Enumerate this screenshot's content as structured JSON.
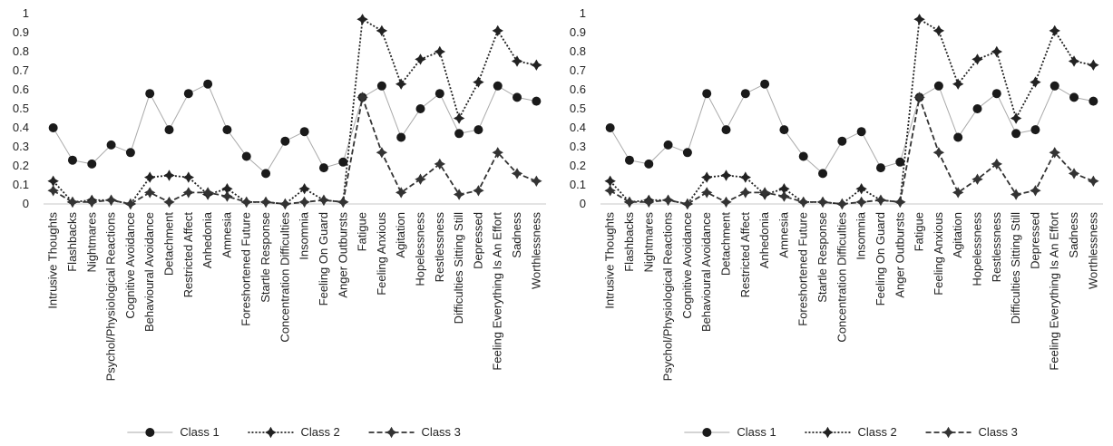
{
  "chart_data": [
    {
      "type": "line",
      "ylim": [
        0,
        1
      ],
      "yticks": [
        "0",
        "0.1",
        "0.2",
        "0.3",
        "0.4",
        "0.5",
        "0.6",
        "0.7",
        "0.8",
        "0.9",
        "1"
      ],
      "grid": false,
      "legend_position": "bottom",
      "categories": [
        "Intrusive Thoughts",
        "Flashbacks",
        "Nightmares",
        "Psychol/Physiological Reactions",
        "Cognitive Avoidance",
        "Behavioural Avoidance",
        "Detachment",
        "Restricted Affect",
        "Anhedonia",
        "Amnesia",
        "Foreshortened Future",
        "Startle Response",
        "Concentration Difficulties",
        "Insomnia",
        "Feeling On Guard",
        "Anger Outbursts",
        "Fatigue",
        "Feeling Anxious",
        "Agitation",
        "Hopelessness",
        "Restlessness",
        "Difficulties Sitting Still",
        "Depressed",
        "Feeling Everything Is An Effort",
        "Sadness",
        "Worthlessness"
      ],
      "series": [
        {
          "name": "Class 1",
          "color": "#aaaaaa",
          "style": "solid",
          "marker": "circle",
          "values": [
            0.4,
            0.23,
            0.21,
            0.31,
            0.27,
            0.58,
            0.39,
            0.58,
            0.63,
            0.39,
            0.25,
            0.16,
            0.33,
            0.38,
            0.19,
            0.22,
            0.56,
            0.62,
            0.35,
            0.5,
            0.58,
            0.37,
            0.39,
            0.62,
            0.56,
            0.54
          ]
        },
        {
          "name": "Class 2",
          "color": "#222222",
          "style": "dotted",
          "marker": "star",
          "values": [
            0.12,
            0.01,
            0.02,
            0.02,
            0.0,
            0.14,
            0.15,
            0.14,
            0.05,
            0.08,
            0.01,
            0.01,
            0.0,
            0.08,
            0.02,
            0.01,
            0.97,
            0.91,
            0.63,
            0.76,
            0.8,
            0.45,
            0.64,
            0.91,
            0.75,
            0.73
          ]
        },
        {
          "name": "Class 3",
          "color": "#333333",
          "style": "dashed",
          "marker": "star",
          "values": [
            0.07,
            0.01,
            0.01,
            0.02,
            0.0,
            0.06,
            0.01,
            0.06,
            0.06,
            0.04,
            0.01,
            0.01,
            0.0,
            0.01,
            0.02,
            0.01,
            0.56,
            0.27,
            0.06,
            0.13,
            0.21,
            0.05,
            0.07,
            0.27,
            0.16,
            0.12
          ]
        }
      ]
    },
    {
      "type": "line",
      "ylim": [
        0,
        1
      ],
      "yticks": [
        "0",
        "0.1",
        "0.2",
        "0.3",
        "0.4",
        "0.5",
        "0.6",
        "0.7",
        "0.8",
        "0.9",
        "1"
      ],
      "grid": false,
      "legend_position": "bottom",
      "categories": [
        "Intrusive Thoughts",
        "Flashbacks",
        "Nightmares",
        "Psychol/Physiological Reactions",
        "Cognitive Avoidance",
        "Behavioural Avoidance",
        "Detachment",
        "Restricted Affect",
        "Anhedonia",
        "Amnesia",
        "Foreshortened Future",
        "Startle Response",
        "Concentration Difficulties",
        "Insomnia",
        "Feeling On Guard",
        "Anger Outbursts",
        "Fatigue",
        "Feeling Anxious",
        "Agitation",
        "Hopelessness",
        "Restlessness",
        "Difficulties Sitting Still",
        "Depressed",
        "Feeling Everything Is An Effort",
        "Sadness",
        "Worthlessness"
      ],
      "series": [
        {
          "name": "Class 1",
          "color": "#aaaaaa",
          "style": "solid",
          "marker": "circle",
          "values": [
            0.4,
            0.23,
            0.21,
            0.31,
            0.27,
            0.58,
            0.39,
            0.58,
            0.63,
            0.39,
            0.25,
            0.16,
            0.33,
            0.38,
            0.19,
            0.22,
            0.56,
            0.62,
            0.35,
            0.5,
            0.58,
            0.37,
            0.39,
            0.62,
            0.56,
            0.54
          ]
        },
        {
          "name": "Class 2",
          "color": "#222222",
          "style": "dotted",
          "marker": "star",
          "values": [
            0.12,
            0.01,
            0.02,
            0.02,
            0.0,
            0.14,
            0.15,
            0.14,
            0.05,
            0.08,
            0.01,
            0.01,
            0.0,
            0.08,
            0.02,
            0.01,
            0.97,
            0.91,
            0.63,
            0.76,
            0.8,
            0.45,
            0.64,
            0.91,
            0.75,
            0.73
          ]
        },
        {
          "name": "Class 3",
          "color": "#333333",
          "style": "dashed",
          "marker": "star",
          "values": [
            0.07,
            0.01,
            0.01,
            0.02,
            0.0,
            0.06,
            0.01,
            0.06,
            0.06,
            0.04,
            0.01,
            0.01,
            0.0,
            0.01,
            0.02,
            0.01,
            0.56,
            0.27,
            0.06,
            0.13,
            0.21,
            0.05,
            0.07,
            0.27,
            0.16,
            0.12
          ]
        }
      ]
    }
  ]
}
